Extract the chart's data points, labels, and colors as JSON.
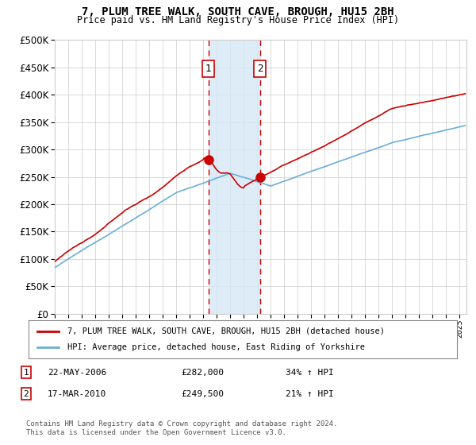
{
  "title": "7, PLUM TREE WALK, SOUTH CAVE, BROUGH, HU15 2BH",
  "subtitle": "Price paid vs. HM Land Registry's House Price Index (HPI)",
  "ylim": [
    0,
    500000
  ],
  "yticks": [
    0,
    50000,
    100000,
    150000,
    200000,
    250000,
    300000,
    350000,
    400000,
    450000,
    500000
  ],
  "xlim_start": 1995.0,
  "xlim_end": 2025.5,
  "sale1_date": 2006.385,
  "sale1_price": 282000,
  "sale2_date": 2010.205,
  "sale2_price": 249500,
  "legend_line1": "7, PLUM TREE WALK, SOUTH CAVE, BROUGH, HU15 2BH (detached house)",
  "legend_line2": "HPI: Average price, detached house, East Riding of Yorkshire",
  "annotation1_date": "22-MAY-2006",
  "annotation1_price": "£282,000",
  "annotation1_hpi": "34% ↑ HPI",
  "annotation2_date": "17-MAR-2010",
  "annotation2_price": "£249,500",
  "annotation2_hpi": "21% ↑ HPI",
  "footer": "Contains HM Land Registry data © Crown copyright and database right 2024.\nThis data is licensed under the Open Government Licence v3.0.",
  "hpi_color": "#6baed6",
  "price_color": "#cc0000",
  "sale_dot_color": "#cc0000",
  "shading_color": "#d6e8f5",
  "dashed_line_color": "#cc0000",
  "background_color": "#ffffff",
  "grid_color": "#cccccc"
}
